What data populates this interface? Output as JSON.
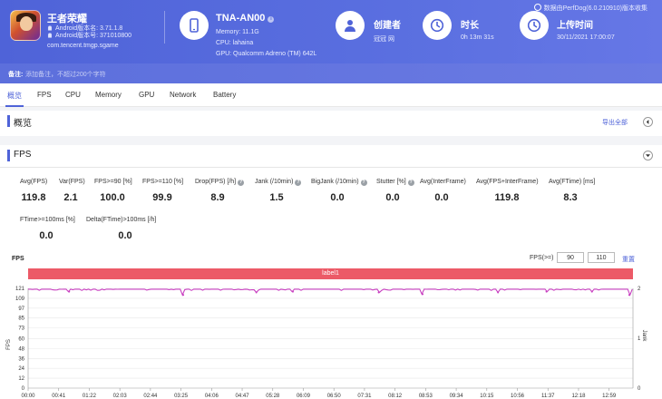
{
  "app": {
    "name": "王者荣耀",
    "android_version": "Android版本名: 3.71.1.8",
    "android_code": "Android版本号: 371010800",
    "package": "com.tencent.tmgp.sgame"
  },
  "device": {
    "name": "TNA-AN00",
    "memory": "Memory: 11.1G",
    "cpu": "CPU: lahaina",
    "gpu": "GPU: Qualcomm Adreno (TM) 642L"
  },
  "creator": {
    "title": "创建者",
    "value": "冠冠 网"
  },
  "duration": {
    "title": "时长",
    "value": "0h 13m 31s"
  },
  "upload": {
    "title": "上传时间",
    "value": "30/11/2021 17:00:07"
  },
  "version_note": "数据由PerfDog(6.0.210910)版本收集",
  "note": {
    "label": "备注:",
    "placeholder": "添加备注，不超过200个字符"
  },
  "tabs": [
    "概览",
    "FPS",
    "CPU",
    "Memory",
    "GPU",
    "Network",
    "Battery"
  ],
  "overview": {
    "title": "概览",
    "export": "导出全部"
  },
  "fps_section": {
    "title": "FPS"
  },
  "metrics_row1": [
    {
      "label": "Avg(FPS)",
      "value": "119.8",
      "help": false
    },
    {
      "label": "Var(FPS)",
      "value": "2.1",
      "help": false
    },
    {
      "label": "FPS>=90 [%]",
      "value": "100.0",
      "help": false
    },
    {
      "label": "FPS>=110 [%]",
      "value": "99.9",
      "help": false
    },
    {
      "label": "Drop(FPS) [/h]",
      "value": "8.9",
      "help": true
    },
    {
      "label": "Jank (/10min)",
      "value": "1.5",
      "help": true
    },
    {
      "label": "BigJank (/10min)",
      "value": "0.0",
      "help": true
    },
    {
      "label": "Stutter [%]",
      "value": "0.0",
      "help": true
    },
    {
      "label": "Avg(InterFrame)",
      "value": "0.0",
      "help": false
    },
    {
      "label": "Avg(FPS+InterFrame)",
      "value": "119.8",
      "help": false
    },
    {
      "label": "Avg(FTime) [ms]",
      "value": "8.3",
      "help": false
    }
  ],
  "metrics_row2": [
    {
      "label": "FTime>=100ms [%]",
      "value": "0.0",
      "help": false
    },
    {
      "label": "Delta(FTime)>100ms [/h]",
      "value": "0.0",
      "help": false
    }
  ],
  "chart_controls": {
    "title": "FPS",
    "filter_label": "FPS(>=)",
    "filter_low": "90",
    "filter_high": "110",
    "reset": "重置",
    "label_bar": "label1"
  },
  "chart_data": {
    "type": "line",
    "ylabel": "FPS",
    "y2label": "Jank",
    "ylim": [
      0,
      121
    ],
    "y_ticks": [
      0,
      12,
      24,
      36,
      48,
      60,
      73,
      85,
      97,
      109,
      121
    ],
    "y2lim": [
      0,
      2
    ],
    "y2_ticks": [
      0,
      1,
      2
    ],
    "x_ticks": [
      "00:00",
      "00:41",
      "01:22",
      "02:03",
      "02:44",
      "03:25",
      "04:06",
      "04:47",
      "05:28",
      "06:09",
      "06:50",
      "07:31",
      "08:12",
      "08:53",
      "09:34",
      "10:15",
      "10:56",
      "11:37",
      "12:18",
      "12:59"
    ],
    "x_range_seconds": [
      0,
      811
    ],
    "series": [
      {
        "values_base": 120,
        "dips": [
          {
            "t": 55,
            "fps": 117
          },
          {
            "t": 208,
            "fps": 113
          },
          {
            "t": 306,
            "fps": 116
          },
          {
            "t": 355,
            "fps": 117
          },
          {
            "t": 470,
            "fps": 116
          },
          {
            "t": 529,
            "fps": 114
          },
          {
            "t": 630,
            "fps": 116
          },
          {
            "t": 695,
            "fps": 117
          },
          {
            "t": 756,
            "fps": 117
          },
          {
            "t": 806,
            "fps": 113
          }
        ]
      }
    ]
  }
}
